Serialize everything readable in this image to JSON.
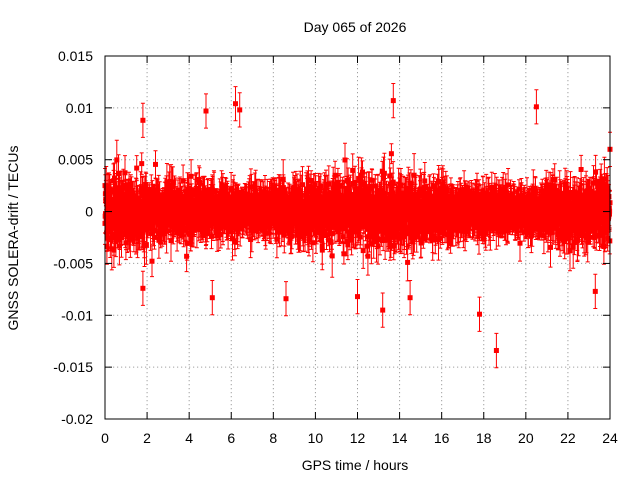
{
  "chart_data": {
    "type": "scatter",
    "title": "Day 065 of 2026",
    "xlabel": "GPS time / hours",
    "ylabel": "GNSS SOLERA-drift / TECUs",
    "xlim": [
      0,
      24
    ],
    "ylim": [
      -0.02,
      0.015
    ],
    "x_ticks": [
      0,
      2,
      4,
      6,
      8,
      10,
      12,
      14,
      16,
      18,
      20,
      22,
      24
    ],
    "x_tick_labels": [
      "0",
      "2",
      "4",
      "6",
      "8",
      "10",
      "12",
      "14",
      "16",
      "18",
      "20",
      "22",
      "24"
    ],
    "y_ticks": [
      -0.02,
      -0.015,
      -0.01,
      -0.005,
      0,
      0.005,
      0.01,
      0.015
    ],
    "y_tick_labels": [
      "-0.02",
      "-0.015",
      "-0.01",
      "-0.005",
      "0",
      "0.005",
      "0.01",
      "0.015"
    ],
    "grid": true,
    "series": [
      {
        "name": "SOLERA drift",
        "color": "#ff0000",
        "marker": "square",
        "error_bars": true,
        "n_points": 2880,
        "x_step_hours": 0.008333,
        "typical_sigma": 0.0022,
        "typical_errorbar": 0.0015,
        "highlighted_points": [
          {
            "x": 0.0,
            "y": 0.0025
          },
          {
            "x": 0.1,
            "y": -0.0015
          },
          {
            "x": 1.8,
            "y": 0.0088
          },
          {
            "x": 1.8,
            "y": -0.0074
          },
          {
            "x": 4.8,
            "y": 0.0097
          },
          {
            "x": 5.1,
            "y": -0.0083
          },
          {
            "x": 6.2,
            "y": 0.0104
          },
          {
            "x": 6.4,
            "y": 0.0098
          },
          {
            "x": 8.6,
            "y": -0.0084
          },
          {
            "x": 12.0,
            "y": -0.0082
          },
          {
            "x": 13.2,
            "y": -0.0095
          },
          {
            "x": 13.7,
            "y": 0.0107
          },
          {
            "x": 14.5,
            "y": -0.0083
          },
          {
            "x": 17.8,
            "y": -0.0099
          },
          {
            "x": 18.6,
            "y": -0.0134
          },
          {
            "x": 20.5,
            "y": 0.0101
          },
          {
            "x": 23.3,
            "y": -0.0077
          },
          {
            "x": 24.0,
            "y": 0.006
          }
        ]
      }
    ]
  }
}
